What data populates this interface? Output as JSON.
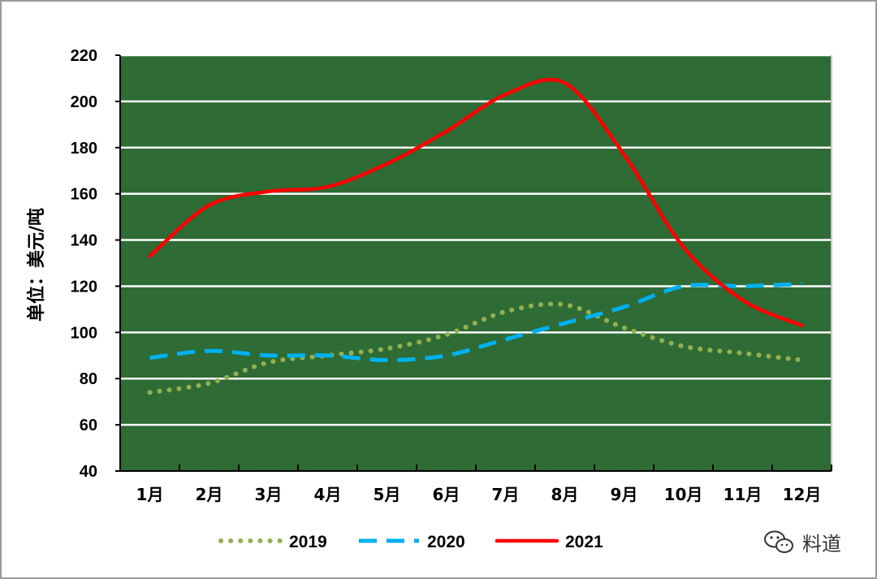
{
  "chart_data": {
    "type": "line",
    "ylabel": "单位：美元/吨",
    "xlabel": "",
    "title": "",
    "ylim": [
      40,
      220
    ],
    "yticks": [
      "40",
      "60",
      "80",
      "100",
      "120",
      "140",
      "160",
      "180",
      "200",
      "220"
    ],
    "categories": [
      "1月",
      "2月",
      "3月",
      "4月",
      "5月",
      "6月",
      "7月",
      "8月",
      "9月",
      "10月",
      "11月",
      "12月"
    ],
    "series": [
      {
        "name": "2019",
        "style": "dotted",
        "color": "#92b050",
        "values": [
          74,
          78,
          87,
          90,
          93,
          99,
          109,
          112,
          102,
          94,
          91,
          88
        ]
      },
      {
        "name": "2020",
        "style": "dashed",
        "color": "#00b0f0",
        "values": [
          89,
          92,
          90,
          90,
          88,
          90,
          97,
          104,
          111,
          120,
          120,
          121
        ]
      },
      {
        "name": "2021",
        "style": "solid",
        "color": "#ff0000",
        "values": [
          133,
          155,
          161,
          163,
          173,
          187,
          203,
          208,
          177,
          137,
          114,
          103
        ]
      }
    ],
    "grid": true,
    "legend": "bottom"
  },
  "watermark": {
    "text": "料道",
    "icon": "wechat-icon"
  },
  "colors": {
    "background": "#ffffff",
    "plot_background": "#2e6b35",
    "gridline": "#ffffff",
    "axis": "#000000"
  }
}
